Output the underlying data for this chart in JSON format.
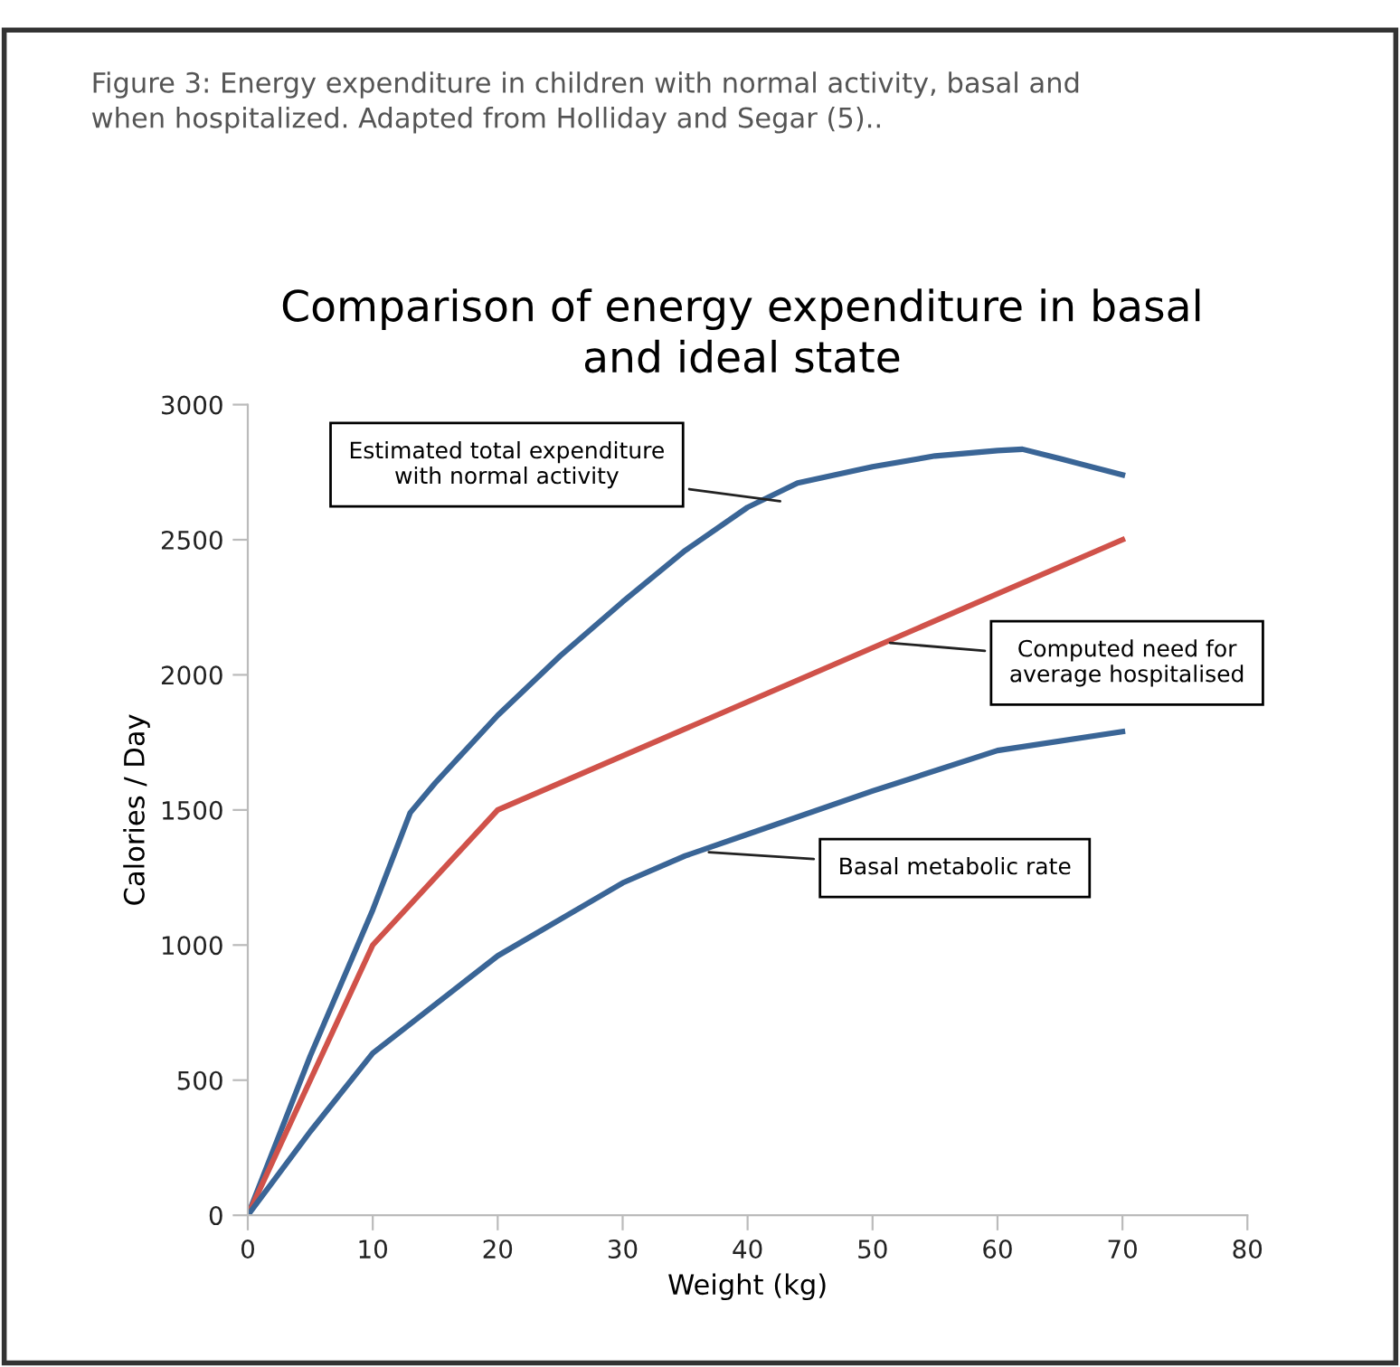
{
  "chart_data": {
    "type": "line",
    "title": "Comparison of energy expenditure in basal\nand ideal state",
    "xlabel": "Weight (kg)",
    "ylabel": "Calories / Day",
    "xlim": [
      0,
      80
    ],
    "xticks": [
      0,
      10,
      20,
      30,
      40,
      50,
      60,
      70,
      80
    ],
    "ylim": [
      0,
      3000
    ],
    "yticks": [
      0,
      500,
      1000,
      1500,
      2000,
      2500,
      3000
    ],
    "grid": false,
    "legend": false,
    "marker": "none",
    "line_style": "solid",
    "series": [
      {
        "color": "#3a6596",
        "x": [
          0,
          5,
          10,
          13,
          15,
          20,
          25,
          30,
          35,
          40,
          44,
          50,
          55,
          60,
          62,
          65,
          70
        ],
        "values": [
          0,
          590,
          1130,
          1490,
          1600,
          1850,
          2070,
          2270,
          2460,
          2620,
          2710,
          2770,
          2810,
          2830,
          2835,
          2800,
          2740
        ]
      },
      {
        "color": "#d0524a",
        "x": [
          0,
          10,
          20,
          70
        ],
        "values": [
          0,
          1000,
          1500,
          2500
        ]
      },
      {
        "color": "#3a6596",
        "x": [
          0,
          5,
          10,
          20,
          30,
          35,
          40,
          50,
          60,
          70
        ],
        "values": [
          0,
          310,
          600,
          960,
          1230,
          1330,
          1410,
          1570,
          1720,
          1790
        ]
      }
    ],
    "annotations": [
      {
        "text": "Estimated total expenditure\nwith normal activity",
        "x": 43,
        "y": 2640
      },
      {
        "text": "Computed need for\naverage hospitalised",
        "x": 51,
        "y": 2120
      },
      {
        "text": "Basal metabolic rate",
        "x": 36.5,
        "y": 1345
      },
      "Figure 3: Energy expenditure in children with normal activity, basal and\nwhen hospitalized. Adapted from Holliday and Segar (5).."
    ]
  }
}
